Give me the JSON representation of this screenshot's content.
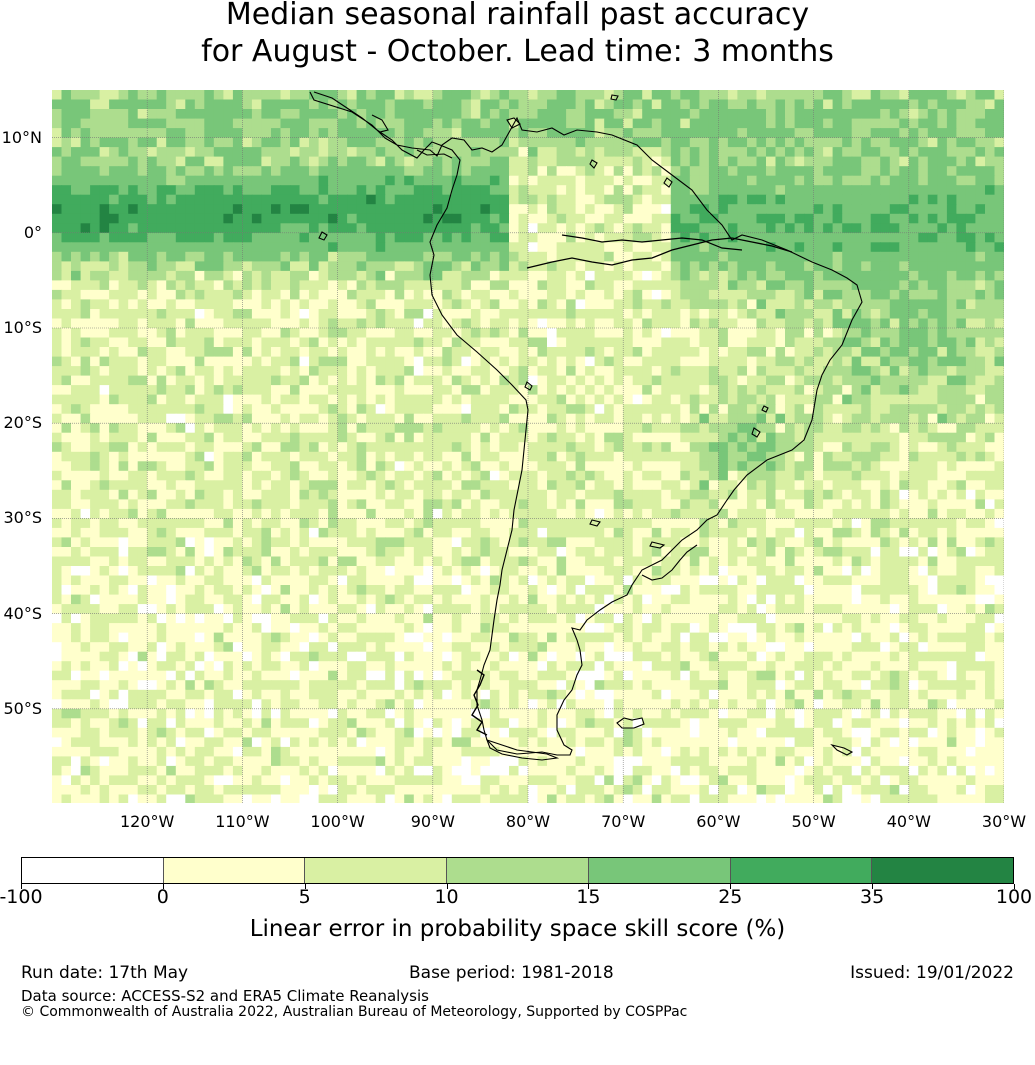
{
  "title": {
    "line1": "Median seasonal rainfall past accuracy",
    "line2": "for August - October. Lead time: 3 months"
  },
  "map": {
    "lon_range": [
      -130,
      -30
    ],
    "lat_range": [
      -60,
      15
    ],
    "lat_labels": [
      {
        "lat": 10,
        "text": "10°N"
      },
      {
        "lat": 0,
        "text": "0°"
      },
      {
        "lat": -10,
        "text": "10°S"
      },
      {
        "lat": -20,
        "text": "20°S"
      },
      {
        "lat": -30,
        "text": "30°S"
      },
      {
        "lat": -40,
        "text": "40°S"
      },
      {
        "lat": -50,
        "text": "50°S"
      }
    ],
    "lon_labels": [
      {
        "lon": -120,
        "text": "120°W"
      },
      {
        "lon": -110,
        "text": "110°W"
      },
      {
        "lon": -100,
        "text": "100°W"
      },
      {
        "lon": -90,
        "text": "90°W"
      },
      {
        "lon": -80,
        "text": "80°W"
      },
      {
        "lon": -70,
        "text": "70°W"
      },
      {
        "lon": -60,
        "text": "60°W"
      },
      {
        "lon": -50,
        "text": "50°W"
      },
      {
        "lon": -40,
        "text": "40°W"
      },
      {
        "lon": -30,
        "text": "30°W"
      }
    ]
  },
  "colorbar": {
    "colors": [
      "#ffffff",
      "#ffffcc",
      "#d9f0a3",
      "#addd8e",
      "#78c679",
      "#41ab5d",
      "#238443"
    ],
    "ticks": [
      "-100",
      "0",
      "5",
      "10",
      "15",
      "25",
      "35",
      "100"
    ],
    "label": "Linear error in probability space skill score (%)"
  },
  "footer": {
    "run_date": "Run date: 17th May",
    "base_period": "Base period: 1981-2018",
    "issued": "Issued: 19/01/2022",
    "data_source": "Data source: ACCESS-S2 and ERA5 Climate Reanalysis",
    "copyright": "© Commonwealth of Australia 2022, Australian Bureau of Meteorology, Supported by COSPPac"
  }
}
